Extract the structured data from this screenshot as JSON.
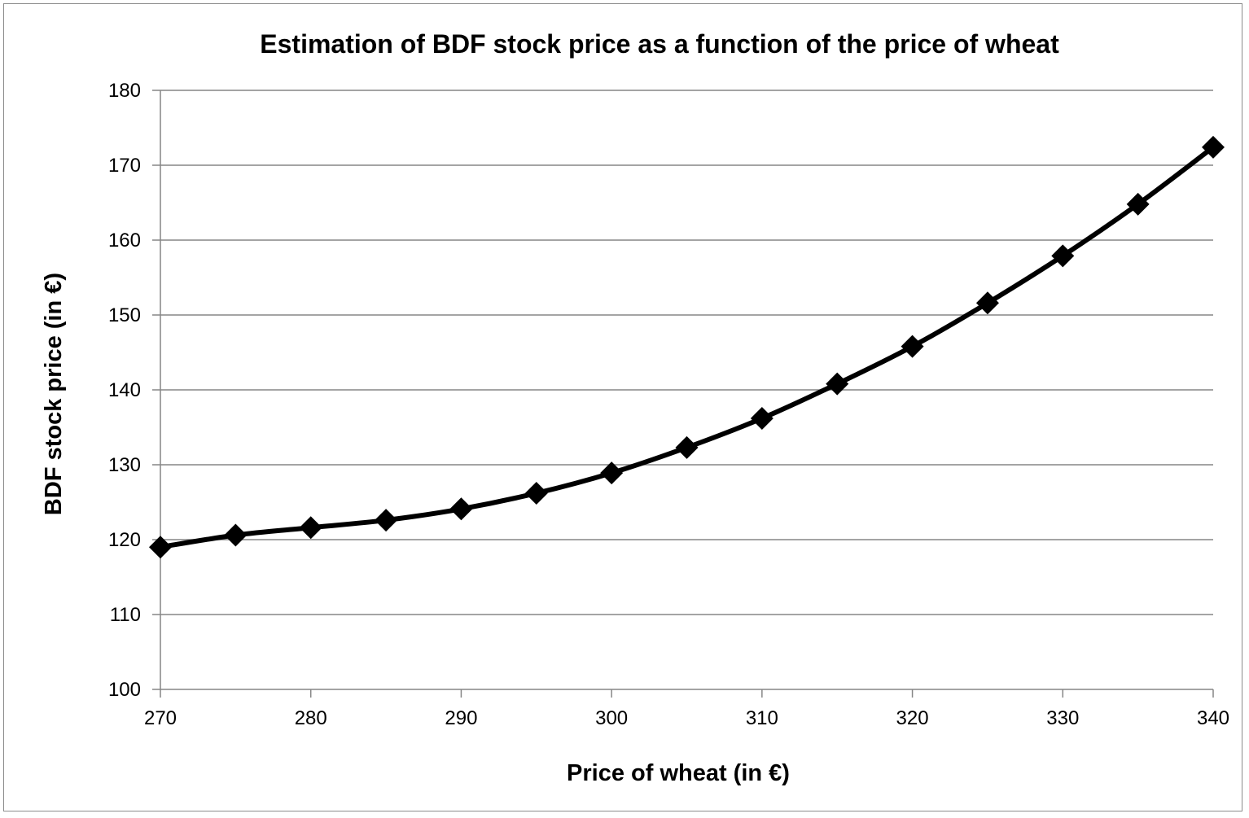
{
  "chart_data": {
    "type": "line",
    "title": "Estimation of BDF stock price as a function of the price of wheat",
    "xlabel": "Price of wheat (in €)",
    "ylabel": "BDF stock price (in €)",
    "xlim": [
      270,
      340
    ],
    "ylim": [
      100,
      180
    ],
    "x_ticks": [
      270,
      280,
      290,
      300,
      310,
      320,
      330,
      340
    ],
    "y_ticks": [
      100,
      110,
      120,
      130,
      140,
      150,
      160,
      170,
      180
    ],
    "grid": "horizontal",
    "legend": "none",
    "series": [
      {
        "color": "#000000",
        "marker": "diamond",
        "x": [
          270,
          275,
          280,
          285,
          290,
          295,
          300,
          305,
          310,
          315,
          320,
          325,
          330,
          335,
          340
        ],
        "y": [
          119.0,
          120.6,
          121.6,
          122.6,
          124.1,
          126.2,
          128.9,
          132.3,
          136.2,
          140.8,
          145.8,
          151.6,
          157.9,
          164.8,
          172.4
        ]
      }
    ]
  }
}
